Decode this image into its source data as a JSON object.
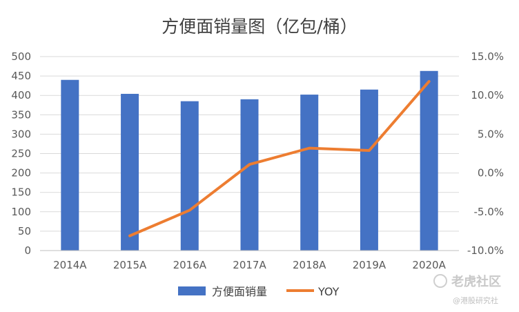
{
  "chart_data": {
    "type": "bar",
    "title": "方便面销量图（亿包/桶）",
    "categories": [
      "2014A",
      "2015A",
      "2016A",
      "2017A",
      "2018A",
      "2019A",
      "2020A"
    ],
    "series": [
      {
        "name": "方便面销量",
        "type": "bar",
        "axis": "left",
        "color": "#4472c4",
        "values": [
          440,
          404,
          385,
          390,
          402,
          415,
          463
        ]
      },
      {
        "name": "YOY",
        "type": "line",
        "axis": "right",
        "color": "#ed7d31",
        "values": [
          null,
          -8.1,
          -4.8,
          1.1,
          3.2,
          2.9,
          11.8
        ]
      }
    ],
    "y_left": {
      "min": 0,
      "max": 500,
      "ticks": [
        "0",
        "50",
        "100",
        "150",
        "200",
        "250",
        "300",
        "350",
        "400",
        "450",
        "500"
      ]
    },
    "y_right": {
      "min": -10,
      "max": 15,
      "ticks": [
        "-10.0%",
        "-5.0%",
        "0.0%",
        "5.0%",
        "10.0%",
        "15.0%"
      ]
    },
    "grid": true,
    "legend_position": "bottom"
  },
  "watermark": {
    "main": "老虎社区",
    "sub": "@港股研究社"
  }
}
